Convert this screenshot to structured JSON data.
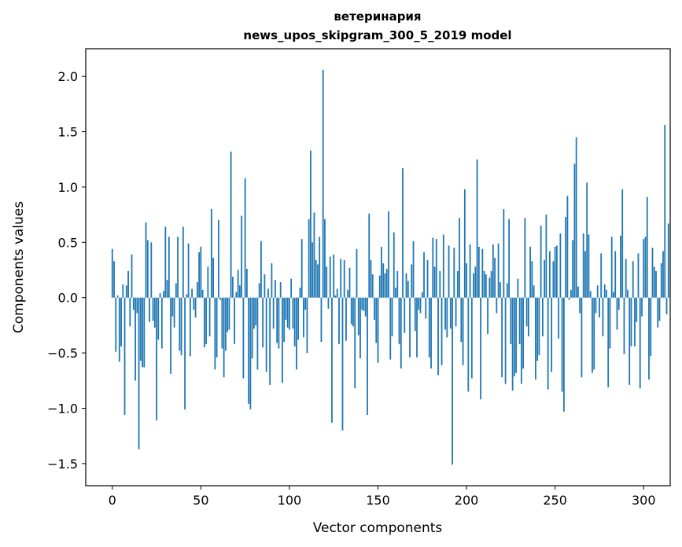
{
  "chart_data": {
    "type": "bar",
    "title_line1": "ветеринария",
    "title_line2": "news_upos_skipgram_300_5_2019 model",
    "xlabel": "Vector components",
    "ylabel": "Components values",
    "xlim": [
      -15,
      315
    ],
    "ylim": [
      -1.7,
      2.25
    ],
    "xticks": [
      0,
      50,
      100,
      150,
      200,
      250,
      300
    ],
    "yticks": [
      -1.5,
      -1.0,
      -0.5,
      0.0,
      0.5,
      1.0,
      1.5,
      2.0
    ],
    "ytick_labels": [
      "−1.5",
      "−1.0",
      "−0.5",
      "0.0",
      "0.5",
      "1.0",
      "1.5",
      "2.0"
    ],
    "bar_color": "#1f77b4",
    "grid": false,
    "values": [
      0.44,
      0.33,
      -0.49,
      0.02,
      -0.58,
      -0.44,
      0.12,
      -1.06,
      0.11,
      0.24,
      -0.26,
      0.39,
      -0.11,
      -0.75,
      -0.14,
      -1.37,
      -0.57,
      -0.63,
      -0.63,
      0.68,
      0.52,
      -0.22,
      0.5,
      -0.21,
      -0.27,
      -1.11,
      -0.38,
      0.04,
      -0.46,
      0.06,
      0.64,
      0.16,
      0.55,
      -0.69,
      -0.17,
      -0.27,
      0.13,
      0.55,
      -0.48,
      -0.52,
      0.64,
      -1.01,
      0.03,
      0.49,
      -0.53,
      0.08,
      -0.11,
      -0.18,
      0.14,
      0.41,
      0.46,
      0.07,
      -0.45,
      -0.42,
      0.28,
      -0.35,
      0.8,
      0.36,
      -0.65,
      -0.54,
      0.7,
      -0.02,
      -0.46,
      -0.72,
      -0.48,
      -0.31,
      -0.29,
      1.32,
      0.19,
      -0.42,
      0.05,
      0.25,
      0.11,
      0.74,
      -0.73,
      1.08,
      0.26,
      -0.96,
      -1.01,
      -0.55,
      -0.28,
      -0.25,
      -0.65,
      0.13,
      0.51,
      -0.45,
      0.21,
      -0.67,
      0.08,
      -0.79,
      0.31,
      -0.28,
      0.16,
      -0.41,
      -0.46,
      0.14,
      -0.77,
      -0.4,
      -0.2,
      -0.27,
      -0.29,
      0.17,
      -0.28,
      -0.44,
      -0.65,
      -0.38,
      0.09,
      0.53,
      -0.36,
      -0.11,
      -0.5,
      0.71,
      1.33,
      0.5,
      0.77,
      0.34,
      0.3,
      0.55,
      -0.4,
      2.06,
      0.71,
      0.28,
      -0.1,
      0.37,
      -1.13,
      0.39,
      0.02,
      0.08,
      -0.42,
      0.35,
      -1.2,
      0.34,
      -0.39,
      0.07,
      0.27,
      -0.24,
      -0.26,
      -0.82,
      0.44,
      -0.34,
      -0.55,
      -0.11,
      -0.12,
      -0.17,
      -1.06,
      0.76,
      0.34,
      0.21,
      -0.2,
      -0.41,
      -0.59,
      0.2,
      0.46,
      0.31,
      0.22,
      0.26,
      0.78,
      -0.56,
      -0.35,
      0.59,
      0.09,
      0.24,
      -0.42,
      -0.64,
      1.17,
      -0.32,
      0.22,
      0.15,
      -0.54,
      0.3,
      0.51,
      -0.3,
      -0.54,
      -0.11,
      -0.14,
      0.05,
      0.41,
      -0.19,
      0.34,
      -0.54,
      -0.64,
      0.54,
      0.28,
      0.53,
      -0.7,
      0.24,
      -0.61,
      0.57,
      -0.29,
      -0.36,
      0.47,
      -0.28,
      -1.51,
      0.45,
      -0.26,
      0.24,
      0.72,
      -0.4,
      -0.61,
      0.98,
      0.31,
      -0.85,
      0.48,
      -0.73,
      0.22,
      0.28,
      1.25,
      0.46,
      -0.92,
      0.44,
      0.24,
      0.21,
      -0.33,
      0.18,
      0.24,
      0.48,
      0.36,
      -0.14,
      0.49,
      0.14,
      -0.72,
      0.8,
      -0.78,
      0.13,
      0.71,
      -0.42,
      -0.84,
      -0.71,
      -0.68,
      0.17,
      -0.42,
      -0.78,
      -0.64,
      0.72,
      -0.26,
      -0.35,
      0.46,
      0.33,
      0.11,
      -0.74,
      -0.57,
      -0.52,
      0.65,
      -0.35,
      0.34,
      0.75,
      -0.83,
      0.42,
      -0.67,
      0.33,
      0.46,
      0.47,
      -0.37,
      0.58,
      -0.85,
      -1.03,
      0.73,
      0.92,
      -0.02,
      0.07,
      0.52,
      1.21,
      1.45,
      0.1,
      -0.14,
      -0.72,
      0.58,
      0.42,
      1.04,
      0.57,
      0.06,
      -0.68,
      -0.65,
      -0.14,
      0.11,
      -0.18,
      0.4,
      -0.35,
      0.12,
      0.07,
      -0.81,
      -0.46,
      0.55,
      0.05,
      0.42,
      -0.29,
      -0.11,
      0.56,
      0.98,
      -0.51,
      0.35,
      0.07,
      -0.79,
      -0.44,
      0.33,
      -0.44,
      -0.22,
      0.4,
      -0.82,
      -0.17,
      0.53,
      0.55,
      0.91,
      -0.74,
      -0.53,
      0.45,
      0.28,
      0.24,
      -0.27,
      -0.21,
      0.31,
      0.42,
      1.56,
      -0.15,
      0.67
    ]
  }
}
